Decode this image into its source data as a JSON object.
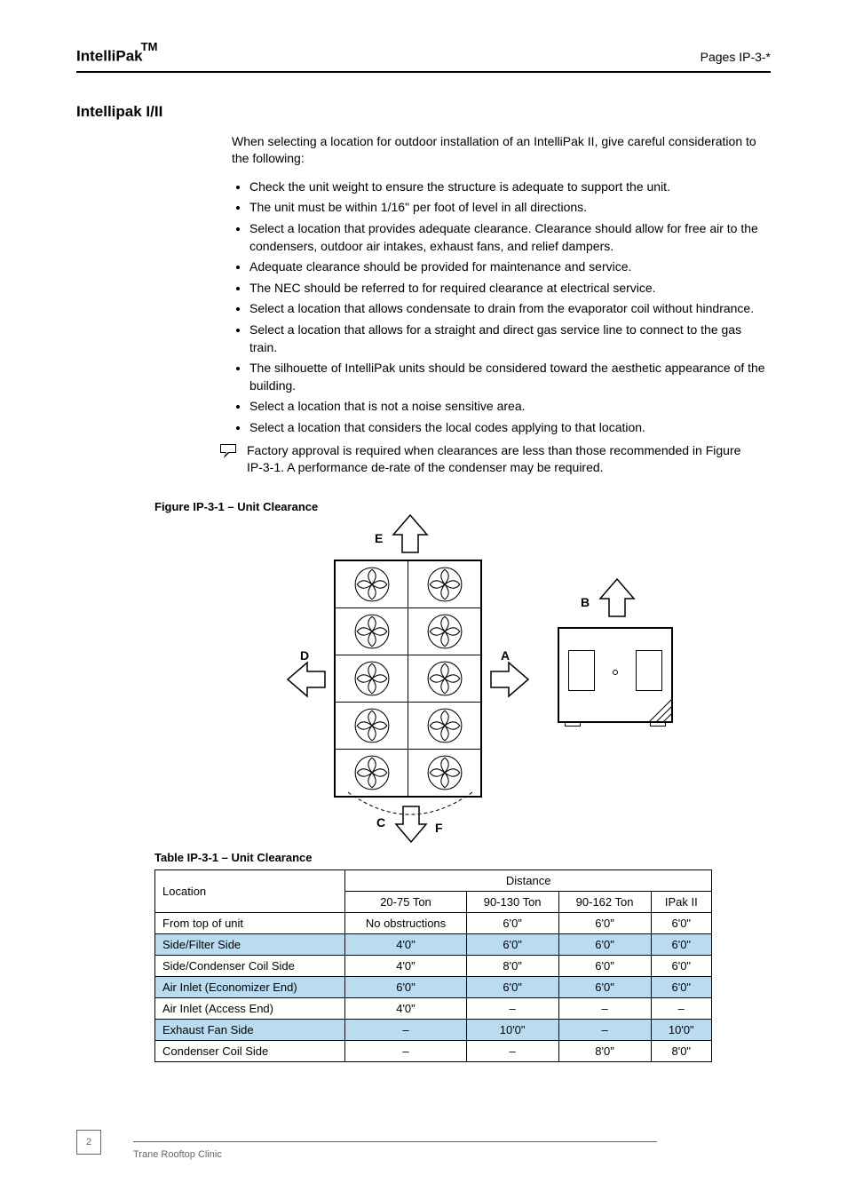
{
  "header": {
    "brand": "IntelliPak",
    "tm": "TM",
    "pages": "Pages IP-3-*"
  },
  "section_title": "Intellipak I/II",
  "intro": "When selecting a location for outdoor installation of an IntelliPak II, give careful consideration to the following:",
  "bullets": [
    "Check the unit weight to ensure the structure is adequate to support the unit.",
    "The unit must be within 1/16\" per foot of level in all directions.",
    "Select a location that provides adequate clearance. Clearance should allow for free air to the condensers, outdoor air intakes, exhaust fans, and relief dampers.",
    "Adequate clearance should be provided for maintenance and service.",
    "The NEC should be referred to for required clearance at electrical service.",
    "Select a location that allows condensate to drain from the evaporator coil without hindrance.",
    "Select a location that allows for a straight and direct gas service line to connect to the gas train.",
    "The silhouette of IntelliPak units should be considered toward the aesthetic appearance of the building.",
    "Select a location that is not a noise sensitive area.",
    "Select a location that considers the local codes applying to that location."
  ],
  "note": "Factory approval is required when clearances are less than those recommended in Figure IP-3-1. A performance de-rate of the condenser may be required.",
  "figure_caption": "Figure IP-3-1 – Unit Clearance",
  "fig_labels": {
    "e": "E",
    "d": "D",
    "a": "A",
    "c": "C",
    "b": "B",
    "f": "F"
  },
  "table_caption": "Table IP-3-1 – Unit Clearance",
  "table": {
    "columns": [
      "20-75 Ton",
      "90-130 Ton",
      "90-162 Ton",
      "IPak II"
    ],
    "rows": [
      {
        "label": "From top of unit",
        "vals": [
          "No obstructions",
          "6'0\"",
          "6'0\"",
          "6'0\""
        ],
        "shade": false
      },
      {
        "label": "Side/Filter Side",
        "vals": [
          "4'0\"",
          "6'0\"",
          "6'0\"",
          "6'0\""
        ],
        "shade": true
      },
      {
        "label": "Side/Condenser Coil Side",
        "vals": [
          "4'0\"",
          "8'0\"",
          "6'0\"",
          "6'0\""
        ],
        "shade": false
      },
      {
        "label": "Air Inlet (Economizer End)",
        "vals": [
          "6'0\"",
          "6'0\"",
          "6'0\"",
          "6'0\""
        ],
        "shade": true
      },
      {
        "label": "Air Inlet (Access End)",
        "vals": [
          "4'0\"",
          "–",
          "–",
          "–"
        ],
        "shade": false
      },
      {
        "label": "Exhaust Fan Side",
        "vals": [
          "–",
          "10'0\"",
          "–",
          "10'0\""
        ],
        "shade": true
      },
      {
        "label": "Condenser Coil Side",
        "vals": [
          "–",
          "–",
          "8'0\"",
          "8'0\""
        ],
        "shade": false
      }
    ]
  },
  "footer": {
    "page": "2",
    "text": "Trane Rooftop Clinic"
  },
  "colors": {
    "shade": "#b9dcf1",
    "text": "#000000",
    "footer": "#666666"
  }
}
